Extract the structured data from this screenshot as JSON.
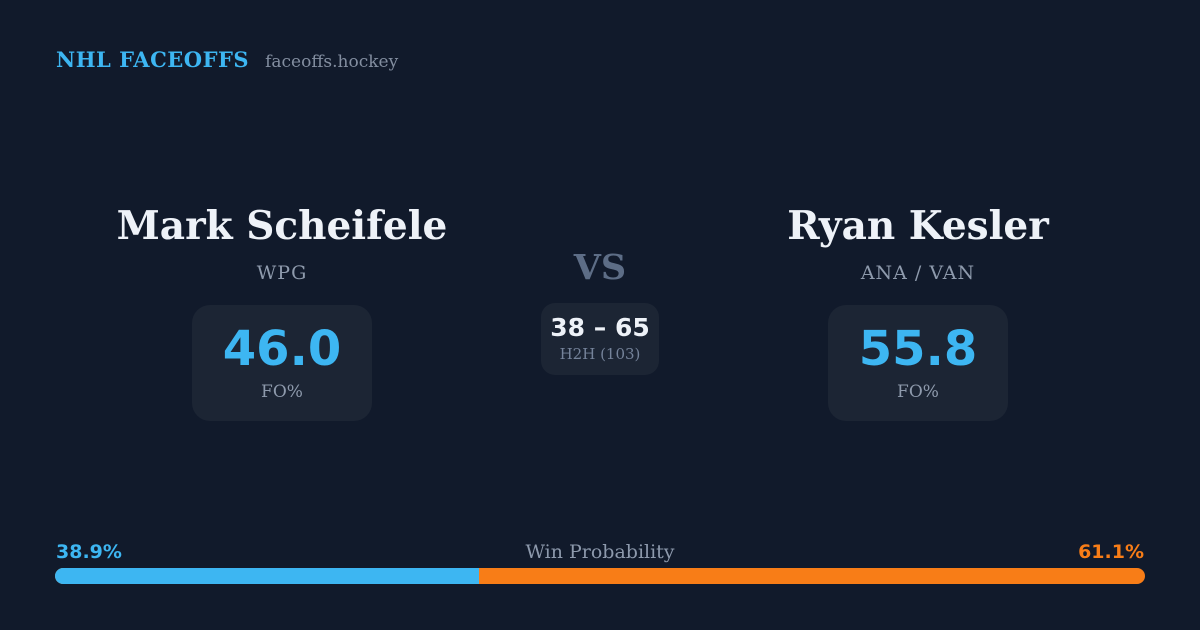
{
  "theme": {
    "bg": "#111a2b",
    "card_bg": "#1c2534",
    "accent_blue": "#3db6f2",
    "accent_orange": "#f87d17"
  },
  "header": {
    "brand": "NHL FACEOFFS",
    "site": "faceoffs.hockey"
  },
  "matchup": {
    "player_left": {
      "name": "Mark Scheifele",
      "team": "WPG",
      "stat_value": "46.0",
      "stat_label": "FO%"
    },
    "vs_label": "VS",
    "h2h": {
      "score": "38 – 65",
      "label": "H2H (103)"
    },
    "player_right": {
      "name": "Ryan Kesler",
      "team": "ANA / VAN",
      "stat_value": "55.8",
      "stat_label": "FO%"
    }
  },
  "win_probability": {
    "label": "Win Probability",
    "left_pct": "38.9%",
    "right_pct": "61.1%",
    "left_value": 38.9,
    "right_value": 61.1
  }
}
